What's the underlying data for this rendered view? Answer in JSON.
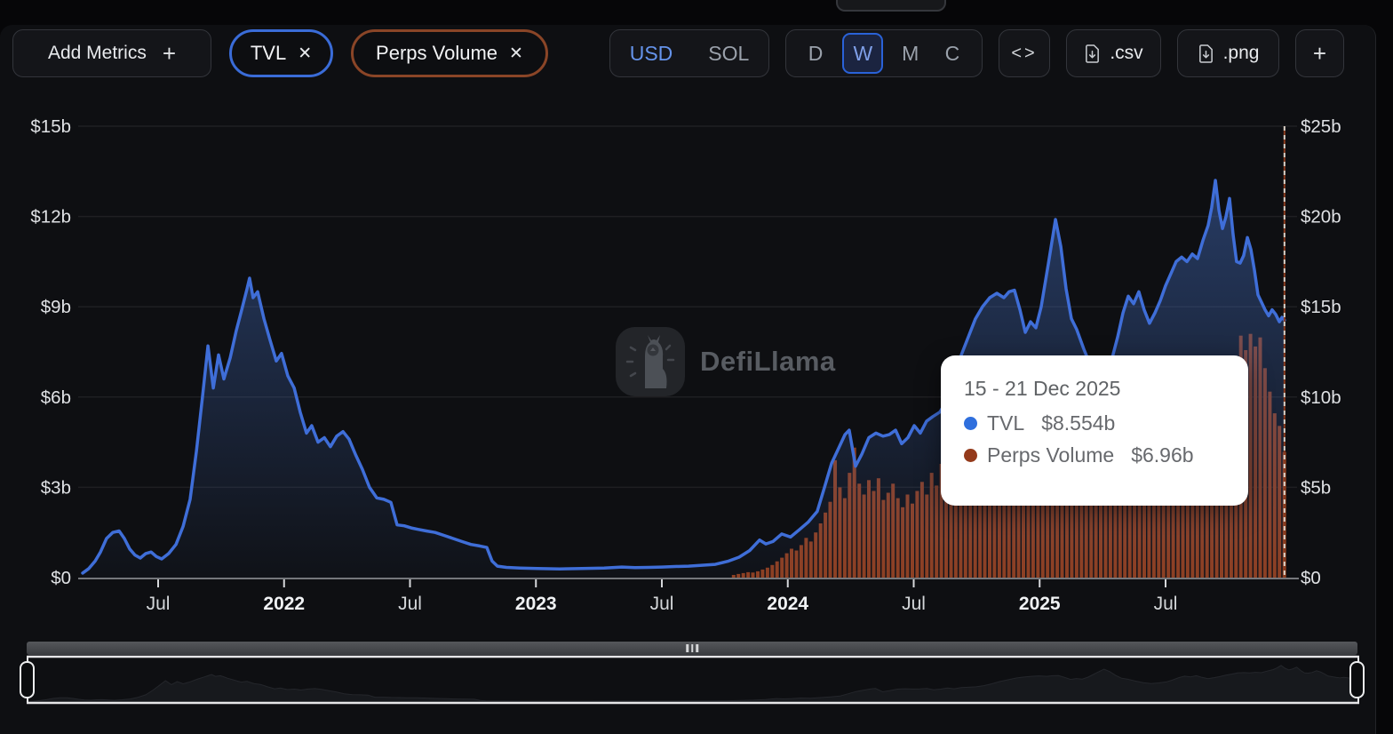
{
  "toolbar": {
    "add_metrics": {
      "label": "Add Metrics",
      "icon": "+"
    },
    "chip_close_icon": "✕",
    "metric_chips": [
      {
        "label": "TVL",
        "color": "#3a6cd8"
      },
      {
        "label": "Perps Volume",
        "color": "#8a4527"
      }
    ],
    "currency_toggle": {
      "options": [
        "USD",
        "SOL"
      ],
      "selected": "USD"
    },
    "interval_toggle": {
      "options": [
        "D",
        "W",
        "M",
        "C"
      ],
      "selected": "W"
    },
    "embed_label": "<>",
    "downloads": [
      ".csv",
      ".png"
    ],
    "more_label": "+"
  },
  "watermark": "DefiLlama",
  "tooltip": {
    "title": "15 - 21 Dec 2025",
    "rows": [
      {
        "label": "TVL",
        "value": "$8.554b",
        "color": "#2f6fdd"
      },
      {
        "label": "Perps Volume",
        "value": "$6.96b",
        "color": "#943a1b"
      }
    ]
  },
  "chart_data": {
    "type": "combo",
    "title": "",
    "grid": true,
    "legend_position": "none",
    "left_axis": {
      "series": "TVL",
      "unit": "$b",
      "ticks": [
        0,
        3,
        6,
        9,
        12,
        15
      ],
      "max": 15
    },
    "right_axis": {
      "series": "Perps Volume",
      "unit": "$b",
      "ticks": [
        0,
        5,
        10,
        15,
        20,
        25
      ],
      "max": 25
    },
    "x_axis": {
      "ticks": [
        {
          "t": 2021.5,
          "label": "Jul"
        },
        {
          "t": 2022.0,
          "label": "2022",
          "bold": true
        },
        {
          "t": 2022.5,
          "label": "Jul"
        },
        {
          "t": 2023.0,
          "label": "2023",
          "bold": true
        },
        {
          "t": 2023.5,
          "label": "Jul"
        },
        {
          "t": 2024.0,
          "label": "2024",
          "bold": true
        },
        {
          "t": 2024.5,
          "label": "Jul"
        },
        {
          "t": 2025.0,
          "label": "2025",
          "bold": true
        },
        {
          "t": 2025.5,
          "label": "Jul"
        }
      ]
    },
    "current_week_marker_t": 2025.972,
    "series": [
      {
        "name": "TVL",
        "type": "line",
        "axis": "left",
        "color": "#3f6ed8",
        "unit": "$b",
        "t": [
          2021.2,
          2021.225,
          2021.25,
          2021.271,
          2021.295,
          2021.32,
          2021.345,
          2021.366,
          2021.387,
          2021.408,
          2021.429,
          2021.451,
          2021.472,
          2021.493,
          2021.514,
          2021.542,
          2021.571,
          2021.599,
          2021.627,
          2021.652,
          2021.676,
          2021.698,
          2021.719,
          2021.74,
          2021.761,
          2021.786,
          2021.81,
          2021.832,
          2021.853,
          2021.863,
          2021.877,
          2021.895,
          2021.92,
          2021.944,
          2021.969,
          2021.99,
          2022.015,
          2022.04,
          2022.064,
          2022.089,
          2022.11,
          2022.135,
          2022.16,
          2022.184,
          2022.209,
          2022.234,
          2022.258,
          2022.283,
          2022.311,
          2022.339,
          2022.368,
          2022.396,
          2022.424,
          2022.449,
          2022.477,
          2022.505,
          2022.534,
          2022.565,
          2022.6,
          2022.636,
          2022.671,
          2022.706,
          2022.742,
          2022.777,
          2022.805,
          2022.826,
          2022.847,
          2022.883,
          2022.936,
          2023.006,
          2023.094,
          2023.183,
          2023.271,
          2023.341,
          2023.394,
          2023.447,
          2023.5,
          2023.553,
          2023.606,
          2023.659,
          2023.712,
          2023.765,
          2023.807,
          2023.849,
          2023.888,
          2023.913,
          2023.941,
          2023.976,
          2024.011,
          2024.047,
          2024.082,
          2024.117,
          2024.146,
          2024.174,
          2024.202,
          2024.227,
          2024.244,
          2024.269,
          2024.294,
          2024.322,
          2024.35,
          2024.378,
          2024.403,
          2024.428,
          2024.452,
          2024.477,
          2024.502,
          2024.526,
          2024.551,
          2024.576,
          2024.604,
          2024.632,
          2024.661,
          2024.689,
          2024.717,
          2024.745,
          2024.773,
          2024.802,
          2024.83,
          2024.858,
          2024.879,
          2024.9,
          2024.922,
          2024.943,
          2024.964,
          2024.985,
          2025.006,
          2025.034,
          2025.063,
          2025.084,
          2025.105,
          2025.126,
          2025.147,
          2025.175,
          2025.204,
          2025.232,
          2025.26,
          2025.288,
          2025.31,
          2025.331,
          2025.352,
          2025.373,
          2025.394,
          2025.415,
          2025.436,
          2025.458,
          2025.479,
          2025.5,
          2025.521,
          2025.542,
          2025.564,
          2025.585,
          2025.606,
          2025.627,
          2025.648,
          2025.669,
          2025.683,
          2025.698,
          2025.712,
          2025.726,
          2025.74,
          2025.754,
          2025.768,
          2025.782,
          2025.796,
          2025.81,
          2025.825,
          2025.839,
          2025.853,
          2025.867,
          2025.881,
          2025.895,
          2025.909,
          2025.923,
          2025.937,
          2025.952,
          2025.962,
          2025.972
        ],
        "v": [
          0.15,
          0.3,
          0.55,
          0.85,
          1.3,
          1.5,
          1.55,
          1.3,
          0.95,
          0.75,
          0.65,
          0.8,
          0.85,
          0.7,
          0.62,
          0.8,
          1.1,
          1.7,
          2.6,
          4.2,
          6.0,
          7.7,
          6.3,
          7.4,
          6.6,
          7.3,
          8.2,
          8.9,
          9.6,
          9.95,
          9.3,
          9.5,
          8.6,
          7.9,
          7.2,
          7.45,
          6.7,
          6.3,
          5.5,
          4.8,
          5.05,
          4.5,
          4.65,
          4.35,
          4.7,
          4.85,
          4.6,
          4.1,
          3.6,
          3.0,
          2.65,
          2.6,
          2.5,
          1.75,
          1.72,
          1.65,
          1.6,
          1.55,
          1.5,
          1.4,
          1.3,
          1.2,
          1.1,
          1.05,
          1.0,
          0.55,
          0.38,
          0.34,
          0.32,
          0.3,
          0.29,
          0.3,
          0.32,
          0.35,
          0.33,
          0.34,
          0.35,
          0.37,
          0.38,
          0.41,
          0.44,
          0.55,
          0.68,
          0.9,
          1.25,
          1.12,
          1.2,
          1.45,
          1.35,
          1.6,
          1.85,
          2.2,
          3.0,
          3.8,
          4.3,
          4.75,
          4.9,
          3.7,
          4.1,
          4.65,
          4.8,
          4.7,
          4.75,
          4.9,
          4.45,
          4.65,
          5.05,
          4.8,
          5.2,
          5.35,
          5.5,
          5.9,
          6.6,
          7.4,
          8.0,
          8.6,
          9.0,
          9.3,
          9.45,
          9.3,
          9.5,
          9.55,
          8.9,
          8.15,
          8.5,
          8.3,
          9.0,
          10.4,
          11.9,
          11.0,
          9.6,
          8.6,
          8.25,
          7.6,
          7.0,
          6.7,
          6.9,
          7.3,
          8.0,
          8.8,
          9.35,
          9.1,
          9.5,
          8.9,
          8.45,
          8.8,
          9.2,
          9.7,
          10.1,
          10.5,
          10.65,
          10.5,
          10.75,
          10.6,
          11.2,
          11.7,
          12.3,
          13.2,
          12.2,
          11.6,
          12.0,
          12.6,
          11.4,
          10.5,
          10.45,
          10.7,
          11.3,
          10.9,
          10.2,
          9.4,
          9.15,
          8.9,
          8.7,
          8.9,
          8.75,
          8.5,
          8.65,
          8.554
        ]
      },
      {
        "name": "Perps Volume",
        "type": "bar",
        "axis": "right",
        "color": "#8f3e1e",
        "unit": "$b",
        "t_start": 2023.785,
        "t_step": 0.01918,
        "v": [
          0.15,
          0.2,
          0.25,
          0.3,
          0.28,
          0.35,
          0.45,
          0.55,
          0.7,
          0.9,
          1.1,
          1.35,
          1.6,
          1.5,
          1.8,
          2.2,
          2.0,
          2.5,
          3.0,
          3.6,
          4.2,
          6.5,
          5.0,
          4.4,
          5.8,
          7.2,
          5.2,
          4.6,
          5.4,
          4.8,
          5.5,
          4.3,
          4.7,
          5.2,
          4.4,
          3.9,
          4.6,
          4.1,
          4.8,
          5.3,
          4.6,
          5.8,
          5.1,
          6.3,
          5.6,
          4.9,
          6.1,
          5.4,
          6.6,
          5.9,
          7.2,
          6.4,
          7.8,
          6.9,
          8.4,
          7.5,
          9.0,
          8.1,
          7.3,
          8.7,
          7.9,
          8.3,
          7.6,
          8.9,
          8.2,
          7.4,
          8.0,
          7.2,
          7.7,
          6.9,
          7.5,
          6.6,
          7.1,
          6.3,
          6.8,
          6.0,
          6.5,
          5.8,
          6.2,
          5.6,
          6.0,
          5.4,
          5.9,
          5.2,
          5.7,
          5.5,
          6.1,
          5.8,
          6.4,
          6.2,
          6.8,
          7.2,
          7.8,
          7.4,
          8.1,
          7.7,
          8.5,
          8.0,
          8.8,
          9.4,
          8.9,
          9.8,
          10.5,
          11.2,
          12.0,
          13.4,
          12.6,
          13.5,
          12.8,
          13.3,
          11.6,
          10.3,
          9.1,
          8.4,
          6.96
        ]
      }
    ]
  }
}
